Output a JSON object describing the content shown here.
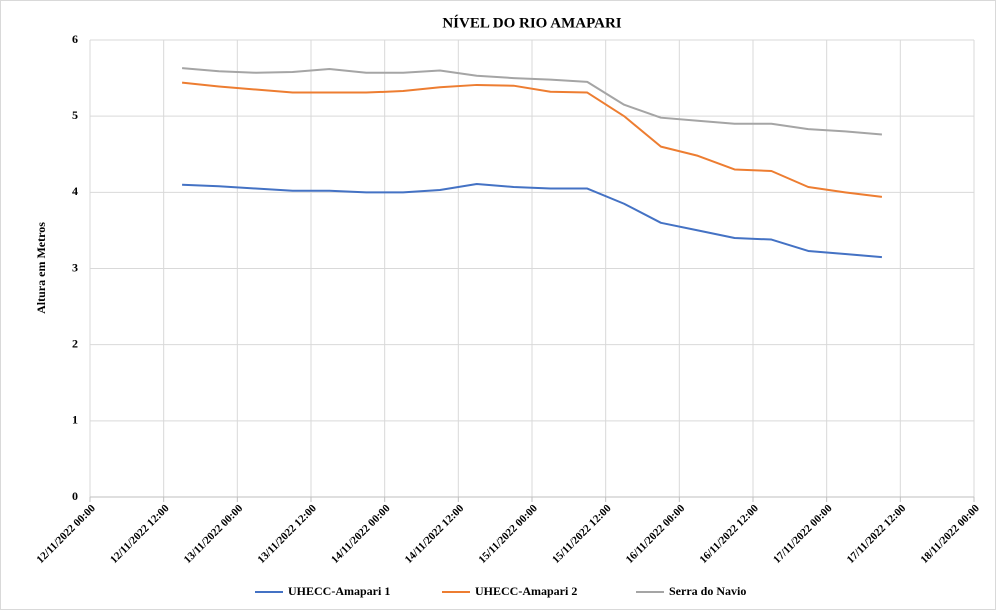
{
  "chart_data": {
    "type": "line",
    "title": "NÍVEL DO RIO AMAPARI",
    "y_label": "Altura  em Metros",
    "x": [
      "2022-11-12T15:00",
      "2022-11-12T21:00",
      "2022-11-13T03:00",
      "2022-11-13T09:00",
      "2022-11-13T15:00",
      "2022-11-13T21:00",
      "2022-11-14T03:00",
      "2022-11-14T09:00",
      "2022-11-14T15:00",
      "2022-11-14T21:00",
      "2022-11-15T03:00",
      "2022-11-15T09:00",
      "2022-11-15T15:00",
      "2022-11-15T21:00",
      "2022-11-16T03:00",
      "2022-11-16T09:00",
      "2022-11-16T15:00",
      "2022-11-16T21:00",
      "2022-11-17T03:00",
      "2022-11-17T09:00"
    ],
    "series": [
      {
        "name": "UHECC-Amapari 1",
        "color": "#4472c4",
        "values": [
          4.1,
          4.08,
          4.05,
          4.02,
          4.02,
          4.0,
          4.0,
          4.03,
          4.11,
          4.07,
          4.05,
          4.05,
          3.85,
          3.6,
          3.5,
          3.4,
          3.38,
          3.23,
          3.19,
          3.15
        ]
      },
      {
        "name": "UHECC-Amapari 2",
        "color": "#ed7d31",
        "values": [
          5.44,
          5.39,
          5.35,
          5.31,
          5.31,
          5.31,
          5.33,
          5.38,
          5.41,
          5.4,
          5.32,
          5.31,
          5.0,
          4.6,
          4.48,
          4.3,
          4.28,
          4.07,
          4.0,
          3.94
        ]
      },
      {
        "name": "Serra do Navio",
        "color": "#a5a5a5",
        "values": [
          5.63,
          5.59,
          5.57,
          5.58,
          5.62,
          5.57,
          5.57,
          5.6,
          5.53,
          5.5,
          5.48,
          5.45,
          5.15,
          4.98,
          4.94,
          4.9,
          4.9,
          4.83,
          4.8,
          4.76
        ]
      }
    ],
    "xlim": [
      "2022-11-12T00:00",
      "2022-11-18T00:00"
    ],
    "xticks": [
      {
        "value": "2022-11-12T00:00",
        "label": "12/11/2022 00:00"
      },
      {
        "value": "2022-11-12T12:00",
        "label": "12/11/2022 12:00"
      },
      {
        "value": "2022-11-13T00:00",
        "label": "13/11/2022 00:00"
      },
      {
        "value": "2022-11-13T12:00",
        "label": "13/11/2022 12:00"
      },
      {
        "value": "2022-11-14T00:00",
        "label": "14/11/2022 00:00"
      },
      {
        "value": "2022-11-14T12:00",
        "label": "14/11/2022 12:00"
      },
      {
        "value": "2022-11-15T00:00",
        "label": "15/11/2022 00:00"
      },
      {
        "value": "2022-11-15T12:00",
        "label": "15/11/2022 12:00"
      },
      {
        "value": "2022-11-16T00:00",
        "label": "16/11/2022 00:00"
      },
      {
        "value": "2022-11-16T12:00",
        "label": "16/11/2022 12:00"
      },
      {
        "value": "2022-11-17T00:00",
        "label": "17/11/2022 00:00"
      },
      {
        "value": "2022-11-17T12:00",
        "label": "17/11/2022 12:00"
      },
      {
        "value": "2022-11-18T00:00",
        "label": "18/11/2022 00:00"
      }
    ],
    "ylim": [
      0,
      6
    ],
    "yticks": [
      0,
      1,
      2,
      3,
      4,
      5,
      6
    ],
    "grid": true,
    "legend": "bottom"
  }
}
